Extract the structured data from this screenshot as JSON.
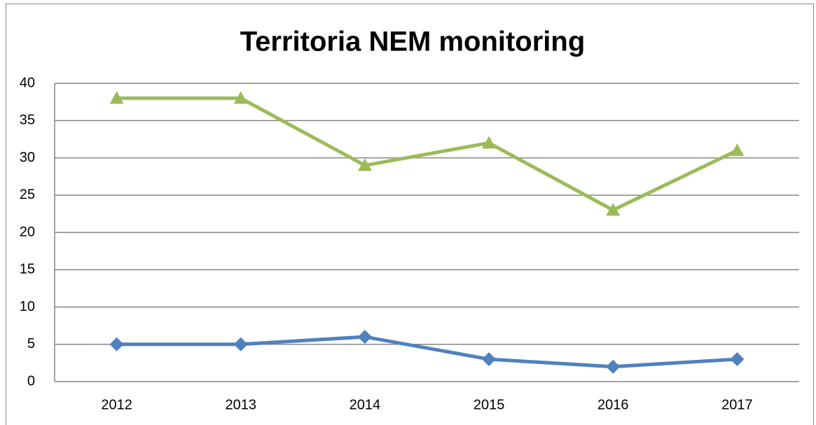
{
  "chart_data": {
    "type": "line",
    "title": "Territoria NEM monitoring",
    "categories": [
      "2012",
      "2013",
      "2014",
      "2015",
      "2016",
      "2017"
    ],
    "series": [
      {
        "color": "#9bbb59",
        "marker": "triangle",
        "values": [
          38,
          38,
          29,
          32,
          23,
          31
        ]
      },
      {
        "color": "#4f81bd",
        "marker": "diamond",
        "values": [
          5,
          5,
          6,
          3,
          2,
          3
        ]
      }
    ],
    "ylim": [
      0,
      40
    ],
    "yticks": [
      0,
      5,
      10,
      15,
      20,
      25,
      30,
      35,
      40
    ],
    "grid": true
  }
}
